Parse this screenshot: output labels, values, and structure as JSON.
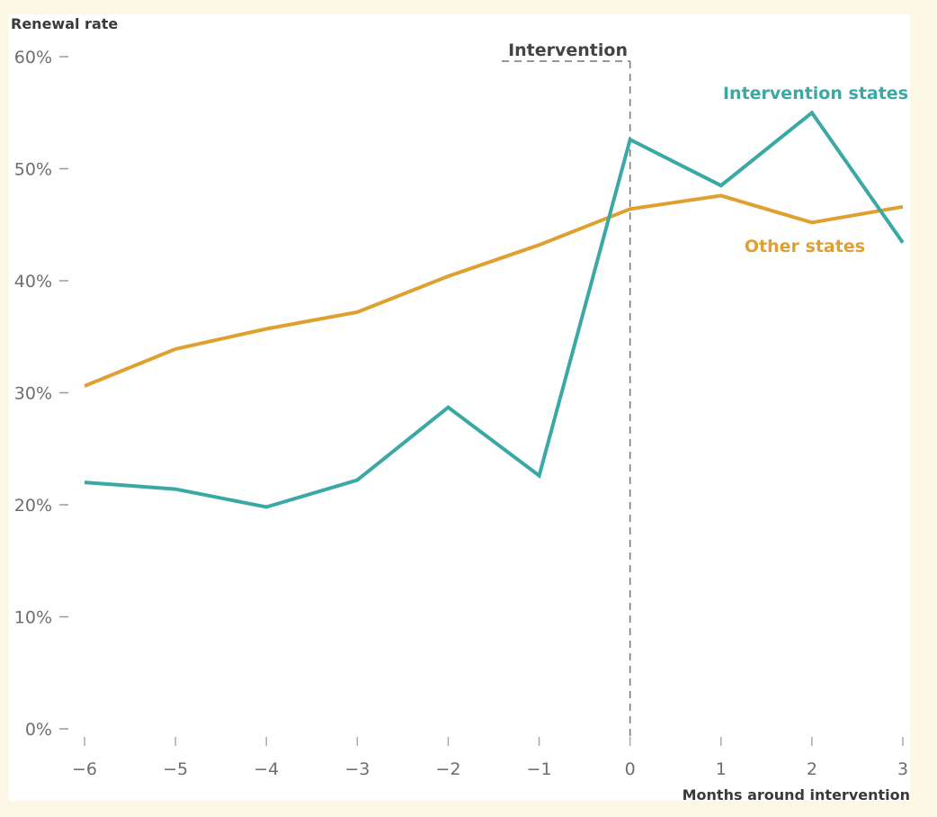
{
  "chart_data": {
    "type": "line",
    "title": "",
    "ylabel": "Renewal rate",
    "xlabel": "Months around intervention",
    "x": [
      -6,
      -5,
      -4,
      -3,
      -2,
      -1,
      0,
      1,
      2,
      3
    ],
    "x_tick_labels": [
      "−6",
      "−5",
      "−4",
      "−3",
      "−2",
      "−1",
      "0",
      "1",
      "2",
      "3"
    ],
    "ylim": [
      0,
      60
    ],
    "y_ticks": [
      0,
      10,
      20,
      30,
      40,
      50,
      60
    ],
    "y_tick_labels": [
      "0%",
      "10%",
      "20%",
      "30%",
      "40%",
      "50%",
      "60%"
    ],
    "grid": false,
    "series": [
      {
        "name": "Intervention states",
        "color": "#3aa8a4",
        "values": [
          22.0,
          21.4,
          19.8,
          22.2,
          28.7,
          22.6,
          52.6,
          48.5,
          55.0,
          43.4
        ]
      },
      {
        "name": "Other states",
        "color": "#e0a030",
        "values": [
          30.6,
          33.9,
          35.7,
          37.2,
          40.4,
          43.2,
          46.4,
          47.6,
          45.2,
          46.6
        ]
      }
    ],
    "annotations": [
      {
        "text": "Intervention",
        "x": 0,
        "style": "dashed vertical line"
      }
    ],
    "legend": "inline labels at top-right"
  }
}
